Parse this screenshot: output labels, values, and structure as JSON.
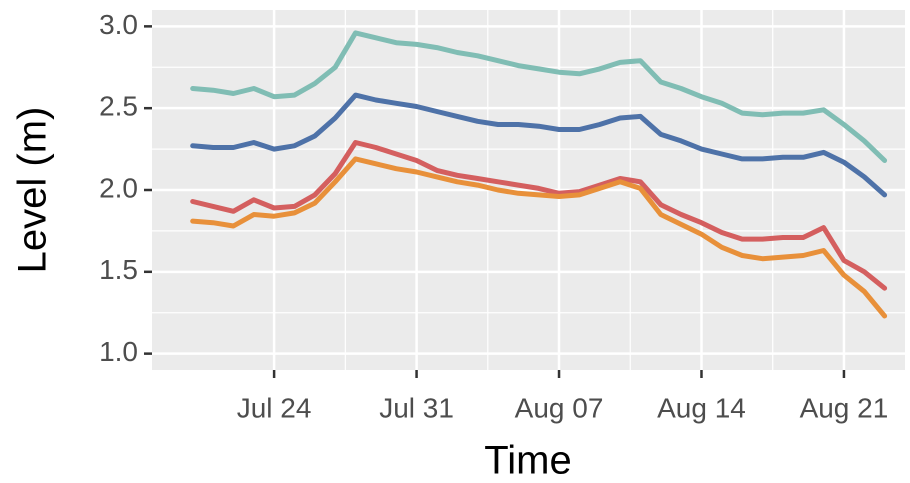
{
  "chart_data": {
    "type": "line",
    "x_label": "Time",
    "y_label": "Level (m)",
    "x": [
      "Jul 20",
      "Jul 21",
      "Jul 22",
      "Jul 23",
      "Jul 24",
      "Jul 25",
      "Jul 26",
      "Jul 27",
      "Jul 28",
      "Jul 29",
      "Jul 30",
      "Jul 31",
      "Aug 01",
      "Aug 02",
      "Aug 03",
      "Aug 04",
      "Aug 05",
      "Aug 06",
      "Aug 07",
      "Aug 08",
      "Aug 09",
      "Aug 10",
      "Aug 11",
      "Aug 12",
      "Aug 13",
      "Aug 14",
      "Aug 15",
      "Aug 16",
      "Aug 17",
      "Aug 18",
      "Aug 19",
      "Aug 20",
      "Aug 21",
      "Aug 22",
      "Aug 23"
    ],
    "series": [
      {
        "color": "#80bdb4",
        "values": [
          2.62,
          2.61,
          2.59,
          2.62,
          2.57,
          2.58,
          2.65,
          2.75,
          2.96,
          2.93,
          2.9,
          2.89,
          2.87,
          2.84,
          2.82,
          2.79,
          2.76,
          2.74,
          2.72,
          2.71,
          2.74,
          2.78,
          2.79,
          2.66,
          2.62,
          2.57,
          2.53,
          2.47,
          2.46,
          2.47,
          2.47,
          2.49,
          2.4,
          2.3,
          2.18
        ]
      },
      {
        "color": "#4e72a8",
        "values": [
          2.27,
          2.26,
          2.26,
          2.29,
          2.25,
          2.27,
          2.33,
          2.44,
          2.58,
          2.55,
          2.53,
          2.51,
          2.48,
          2.45,
          2.42,
          2.4,
          2.4,
          2.39,
          2.37,
          2.37,
          2.4,
          2.44,
          2.45,
          2.34,
          2.3,
          2.25,
          2.22,
          2.19,
          2.19,
          2.2,
          2.2,
          2.23,
          2.17,
          2.08,
          1.97
        ]
      },
      {
        "color": "#d45f5f",
        "values": [
          1.93,
          1.9,
          1.87,
          1.94,
          1.89,
          1.9,
          1.97,
          2.1,
          2.29,
          2.26,
          2.22,
          2.18,
          2.12,
          2.09,
          2.07,
          2.05,
          2.03,
          2.01,
          1.98,
          1.99,
          2.03,
          2.07,
          2.05,
          1.91,
          1.85,
          1.8,
          1.74,
          1.7,
          1.7,
          1.71,
          1.71,
          1.77,
          1.57,
          1.5,
          1.4
        ]
      },
      {
        "color": "#e8903a",
        "values": [
          1.81,
          1.8,
          1.78,
          1.85,
          1.84,
          1.86,
          1.92,
          2.05,
          2.19,
          2.16,
          2.13,
          2.11,
          2.08,
          2.05,
          2.03,
          2.0,
          1.98,
          1.97,
          1.96,
          1.97,
          2.01,
          2.05,
          2.01,
          1.85,
          1.79,
          1.73,
          1.65,
          1.6,
          1.58,
          1.59,
          1.6,
          1.63,
          1.48,
          1.38,
          1.23
        ]
      }
    ],
    "xlim": [
      "Jul 18",
      "Aug 24"
    ],
    "xticks": [
      "Jul 24",
      "Jul 31",
      "Aug 07",
      "Aug 14",
      "Aug 21"
    ],
    "ylim": [
      0.9,
      3.1
    ],
    "yticks": [
      {
        "value": 1.0,
        "label": "1.0"
      },
      1.5,
      {
        "value": 2.0,
        "label": "2.0"
      },
      2.5,
      {
        "value": 3.0,
        "label": "3.0"
      }
    ],
    "grid": true
  }
}
